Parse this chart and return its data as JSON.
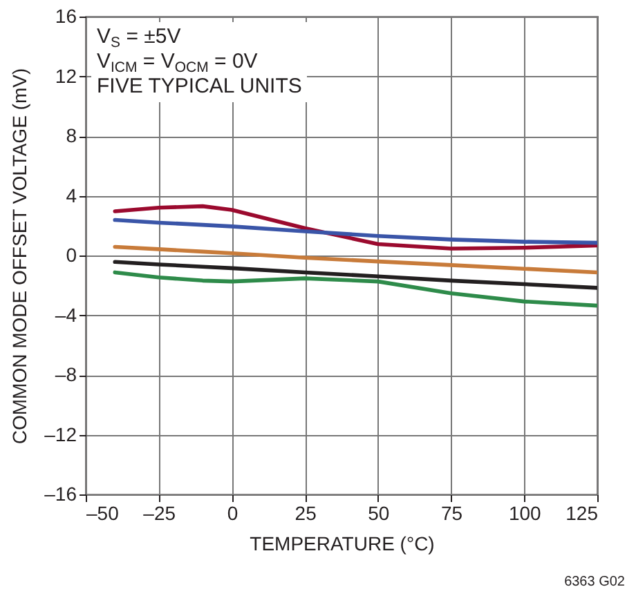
{
  "chart_data": {
    "type": "line",
    "xlabel": "TEMPERATURE (°C)",
    "ylabel": "COMMON MODE OFFSET VOLTAGE (mV)",
    "annotations": [
      "V$_{S}$ = ±5V",
      "V$_{ICM}$ = V$_{OCM}$ = 0V",
      "FIVE TYPICAL UNITS",
      "6363 G02"
    ],
    "x": [
      -40,
      -25,
      -10,
      0,
      25,
      50,
      75,
      100,
      125
    ],
    "series": [
      {
        "color": "#9b0a2e",
        "values": [
          2.96,
          3.2,
          3.3,
          3.05,
          1.83,
          0.76,
          0.46,
          0.52,
          0.67
        ]
      },
      {
        "color": "#3a55a8",
        "values": [
          2.38,
          2.2,
          2.05,
          1.95,
          1.62,
          1.31,
          1.07,
          0.92,
          0.85
        ]
      },
      {
        "color": "#c87b3a",
        "values": [
          0.58,
          0.42,
          0.26,
          0.15,
          -0.15,
          -0.4,
          -0.64,
          -0.89,
          -1.13
        ]
      },
      {
        "color": "#231f20",
        "values": [
          -0.43,
          -0.6,
          -0.75,
          -0.85,
          -1.13,
          -1.4,
          -1.68,
          -1.92,
          -2.17
        ]
      },
      {
        "color": "#2e8b4a",
        "values": [
          -1.13,
          -1.47,
          -1.68,
          -1.74,
          -1.53,
          -1.74,
          -2.53,
          -3.08,
          -3.36
        ]
      }
    ],
    "xlim": [
      -50,
      125
    ],
    "xticks": [
      {
        "value": -50,
        "label": "–50"
      },
      {
        "value": -25,
        "label": "–25"
      },
      0,
      25,
      50,
      75,
      100,
      125
    ],
    "ylim": [
      -16,
      16
    ],
    "yticks": [
      {
        "value": -16,
        "label": "–16"
      },
      {
        "value": -12,
        "label": "–12"
      },
      {
        "value": -8,
        "label": "–8"
      },
      {
        "value": -4,
        "label": "–4"
      },
      0,
      4,
      8,
      12,
      16
    ],
    "grid": true,
    "line_style": "solid"
  }
}
